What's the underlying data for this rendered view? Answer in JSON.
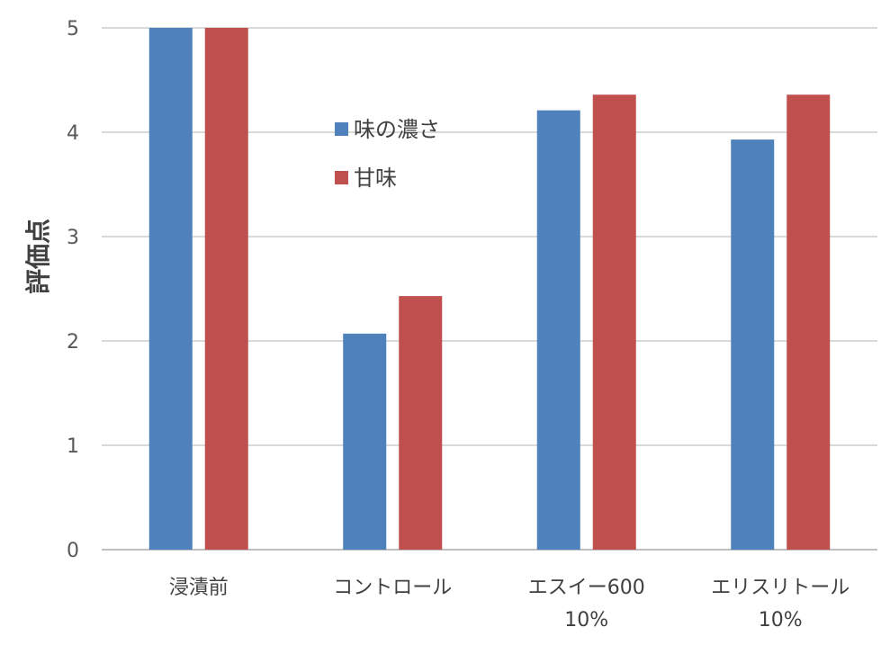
{
  "chart_data": {
    "type": "bar",
    "categories": [
      [
        "浸漬前"
      ],
      [
        "コントロール"
      ],
      [
        "エスイー600",
        "10%"
      ],
      [
        "エリスリトール",
        "10%"
      ]
    ],
    "series": [
      {
        "name": "味の濃さ",
        "color": "#4f81bd",
        "values": [
          5.0,
          2.07,
          4.21,
          3.93
        ]
      },
      {
        "name": "甘味",
        "color": "#c0504d",
        "values": [
          5.0,
          2.43,
          4.36,
          4.36
        ]
      }
    ],
    "title": "",
    "xlabel": "",
    "ylabel": "評価点",
    "ylim": [
      0,
      5
    ],
    "yticks": [
      0,
      1,
      2,
      3,
      4,
      5
    ],
    "grid": true,
    "legend_position": "top-center"
  }
}
